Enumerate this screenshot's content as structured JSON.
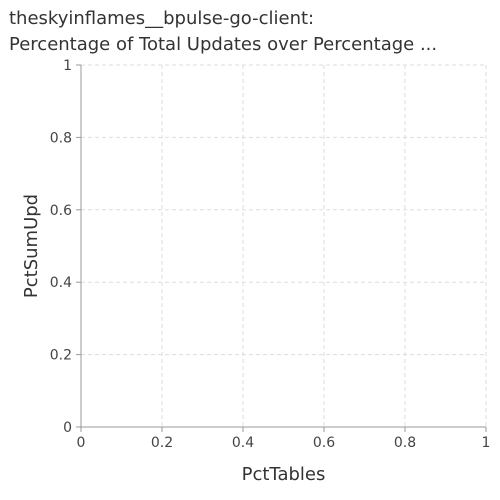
{
  "chart_data": {
    "type": "scatter",
    "title_line1": "theskyinflames__bpulse-go-client:",
    "title_line2": "Percentage of Total Updates over Percentage ...",
    "xlabel": "PctTables",
    "ylabel": "PctSumUpd",
    "xlim": [
      0,
      1
    ],
    "ylim": [
      0,
      1
    ],
    "x_ticks": [
      "0",
      "0.2",
      "0.4",
      "0.6",
      "0.8",
      "1"
    ],
    "y_ticks": [
      "0",
      "0.2",
      "0.4",
      "0.6",
      "0.8",
      "1"
    ],
    "grid": true,
    "series": []
  },
  "colors": {
    "grid": "#dddddd",
    "axis": "#999999",
    "text": "#333333"
  }
}
